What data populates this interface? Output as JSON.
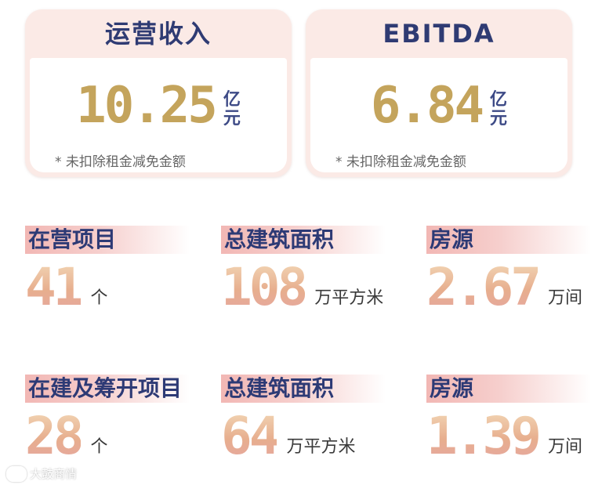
{
  "cards": [
    {
      "title": "运营收入",
      "value": "10.25",
      "unit_top": "亿",
      "unit_bottom": "元",
      "note": "* 未扣除租金减免金额"
    },
    {
      "title": "EBITDA",
      "value": "6.84",
      "unit_top": "亿",
      "unit_bottom": "元",
      "note": "* 未扣除租金减免金额"
    }
  ],
  "row1": [
    {
      "label": "在营项目",
      "value": "41",
      "unit": "个"
    },
    {
      "label": "总建筑面积",
      "value": "108",
      "unit": "万平方米"
    },
    {
      "label": "房源",
      "value": "2.67",
      "unit": "万间"
    }
  ],
  "row2": [
    {
      "label": "在建及筹开项目",
      "value": "28",
      "unit": "个"
    },
    {
      "label": "总建筑面积",
      "value": "64",
      "unit": "万平方米"
    },
    {
      "label": "房源",
      "value": "1.39",
      "unit": "万间"
    }
  ],
  "watermark": {
    "text": "大鼓商情"
  },
  "colors": {
    "title_navy": "#2f3b73",
    "card_bg": "#fbeae6",
    "gold": "#c4a45c",
    "label_bar_pink": "#f2b7b4"
  }
}
